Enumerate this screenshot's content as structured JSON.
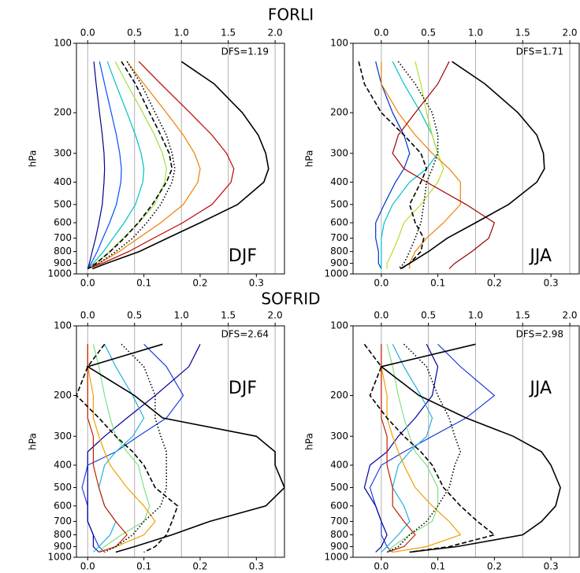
{
  "panel_titles": [
    "FORLI",
    "SOFRID"
  ],
  "chart_data": [
    {
      "type": "line",
      "ylabel": "hPa",
      "season": "DJF",
      "season_position": "lower",
      "annotation": "DFS=1.19",
      "ylim": [
        1000,
        100
      ],
      "log_y": true,
      "yticks": [
        100,
        200,
        300,
        400,
        500,
        600,
        700,
        800,
        900,
        1000
      ],
      "xlim": [
        -0.02,
        0.35
      ],
      "xticks": [
        {
          "value": 0,
          "label": "0.0"
        },
        0.1,
        0.2,
        0.3
      ],
      "x2lim": [
        -0.12,
        2.1
      ],
      "x2ticks": [
        {
          "value": 0,
          "label": "0.0"
        },
        0.5,
        {
          "value": 1,
          "label": "1.0"
        },
        1.5,
        {
          "value": 2,
          "label": "2.0"
        }
      ],
      "grid": true,
      "levels": [
        120,
        150,
        200,
        250,
        300,
        350,
        400,
        500,
        600,
        700,
        800,
        900,
        950
      ],
      "series": [
        {
          "color": "#00008b",
          "style": "solid",
          "values": [
            0.011,
            0.015,
            0.021,
            0.026,
            0.029,
            0.03,
            0.029,
            0.026,
            0.02,
            0.014,
            0.008,
            0.003,
            0
          ]
        },
        {
          "color": "#0050ff",
          "style": "solid",
          "values": [
            0.021,
            0.03,
            0.042,
            0.051,
            0.057,
            0.06,
            0.059,
            0.051,
            0.039,
            0.027,
            0.017,
            0.006,
            0
          ]
        },
        {
          "color": "#00c0c0",
          "style": "solid",
          "values": [
            0.035,
            0.05,
            0.07,
            0.085,
            0.095,
            0.1,
            0.098,
            0.085,
            0.065,
            0.045,
            0.028,
            0.01,
            0
          ]
        },
        {
          "color": "#a0e040",
          "style": "solid",
          "values": [
            0.049,
            0.07,
            0.098,
            0.119,
            0.133,
            0.14,
            0.137,
            0.119,
            0.091,
            0.063,
            0.039,
            0.014,
            0
          ]
        },
        {
          "color": "#f08000",
          "style": "solid",
          "values": [
            0.07,
            0.1,
            0.14,
            0.17,
            0.19,
            0.2,
            0.196,
            0.17,
            0.13,
            0.09,
            0.056,
            0.02,
            0
          ]
        },
        {
          "color": "#c00000",
          "style": "solid",
          "values": [
            0.091,
            0.13,
            0.182,
            0.221,
            0.247,
            0.26,
            0.255,
            0.221,
            0.169,
            0.117,
            0.073,
            0.026,
            0
          ]
        },
        {
          "color": "#000000",
          "style": "dashed",
          "values": [
            0.06,
            0.085,
            0.11,
            0.13,
            0.145,
            0.15,
            0.14,
            0.115,
            0.09,
            0.065,
            0.04,
            0.015,
            0
          ]
        },
        {
          "color": "#000000",
          "style": "dotted",
          "values": [
            0.07,
            0.095,
            0.12,
            0.14,
            0.15,
            0.155,
            0.15,
            0.13,
            0.105,
            0.08,
            0.05,
            0.02,
            0
          ]
        },
        {
          "color": "#000000",
          "style": "solid",
          "axis": "x2",
          "values": [
            1.0,
            1.35,
            1.65,
            1.82,
            1.9,
            1.93,
            1.88,
            1.6,
            1.2,
            0.85,
            0.55,
            0.2,
            0.05
          ]
        }
      ]
    },
    {
      "type": "line",
      "ylabel": "hPa",
      "season": "JJA",
      "season_position": "lower",
      "annotation": "DFS=1.71",
      "ylim": [
        1000,
        100
      ],
      "log_y": true,
      "yticks": [
        100,
        200,
        300,
        400,
        500,
        600,
        700,
        800,
        900,
        1000
      ],
      "xlim": [
        -0.05,
        0.35
      ],
      "xticks": [
        {
          "value": 0,
          "label": "0.0"
        },
        0.1,
        0.2,
        0.3
      ],
      "x2lim": [
        -0.3,
        2.1
      ],
      "x2ticks": [
        {
          "value": 0,
          "label": "0.0"
        },
        0.5,
        {
          "value": 1,
          "label": "1.0"
        },
        1.5,
        {
          "value": 2,
          "label": "2.0"
        }
      ],
      "grid": true,
      "levels": [
        120,
        150,
        200,
        250,
        300,
        350,
        400,
        500,
        600,
        700,
        800,
        900,
        950
      ],
      "series": [
        {
          "color": "#0030d0",
          "style": "solid",
          "values": [
            -0.01,
            0,
            0.02,
            0.04,
            0.05,
            0.04,
            0.025,
            0.005,
            -0.01,
            -0.01,
            -0.005,
            -0.005,
            0
          ]
        },
        {
          "color": "#00c0d0",
          "style": "solid",
          "values": [
            0.02,
            0.04,
            0.07,
            0.09,
            0.1,
            0.08,
            0.05,
            0.02,
            0.005,
            0,
            0,
            0,
            0
          ]
        },
        {
          "color": "#b0e030",
          "style": "solid",
          "values": [
            0.06,
            0.07,
            0.08,
            0.09,
            0.1,
            0.11,
            0.1,
            0.07,
            0.04,
            0.03,
            0.02,
            0.01,
            0.01
          ]
        },
        {
          "color": "#f08000",
          "style": "solid",
          "values": [
            0.0,
            0.0,
            0.03,
            0.06,
            0.09,
            0.12,
            0.14,
            0.14,
            0.11,
            0.08,
            0.06,
            0.05,
            0.05
          ]
        },
        {
          "color": "#a00000",
          "style": "solid",
          "values": [
            0.12,
            0.1,
            0.06,
            0.03,
            0.02,
            0.04,
            0.08,
            0.15,
            0.2,
            0.19,
            0.16,
            0.13,
            0.12
          ]
        },
        {
          "color": "#000000",
          "style": "dashed",
          "values": [
            -0.04,
            -0.03,
            0.0,
            0.04,
            0.07,
            0.08,
            0.07,
            0.05,
            0.06,
            0.075,
            0.07,
            0.05,
            0.035
          ]
        },
        {
          "color": "#000000",
          "style": "dotted",
          "values": [
            0.03,
            0.06,
            0.09,
            0.1,
            0.1,
            0.09,
            0.08,
            0.075,
            0.07,
            0.06,
            0.05,
            0.04,
            0.03
          ]
        },
        {
          "color": "#000000",
          "style": "solid",
          "axis": "x2",
          "values": [
            0.75,
            1.1,
            1.45,
            1.65,
            1.72,
            1.73,
            1.65,
            1.35,
            1.0,
            0.7,
            0.5,
            0.3,
            0.2
          ]
        }
      ]
    },
    {
      "type": "line",
      "ylabel": "hPa",
      "season": "DJF",
      "season_position": "upper",
      "annotation": "DFS=2.64",
      "ylim": [
        1000,
        100
      ],
      "log_y": true,
      "yticks": [
        100,
        200,
        300,
        400,
        500,
        600,
        700,
        800,
        900,
        1000
      ],
      "xlim": [
        -0.02,
        0.35
      ],
      "xticks": [
        {
          "value": 0,
          "label": "0.0"
        },
        0.1,
        0.2,
        0.3
      ],
      "x2lim": [
        -0.12,
        2.1
      ],
      "x2ticks": [
        {
          "value": 0,
          "label": "0.0"
        },
        0.5,
        {
          "value": 1,
          "label": "1.0"
        },
        1.5,
        {
          "value": 2,
          "label": "2.0"
        }
      ],
      "grid": true,
      "levels": [
        120,
        150,
        200,
        250,
        300,
        350,
        400,
        500,
        600,
        700,
        800,
        900,
        950
      ],
      "series": [
        {
          "color": "#2040e0",
          "style": "solid",
          "values": [
            0.1,
            0.14,
            0.17,
            0.14,
            0.09,
            0.05,
            0.0,
            -0.01,
            0.0,
            0.0,
            0.01,
            0.02,
            0.03
          ]
        },
        {
          "color": "#0000a0",
          "style": "solid",
          "values": [
            0.2,
            0.18,
            0.12,
            0.07,
            0.03,
            0.0,
            0.0,
            0.0,
            0.0,
            0.0,
            0.01,
            0.01,
            0.02
          ]
        },
        {
          "color": "#20b0e0",
          "style": "solid",
          "values": [
            0.03,
            0.05,
            0.08,
            0.1,
            0.08,
            0.05,
            0.03,
            0.02,
            0.03,
            0.05,
            0.04,
            0.02,
            0.01
          ]
        },
        {
          "color": "#80e080",
          "style": "solid",
          "values": [
            0.01,
            0.02,
            0.03,
            0.04,
            0.05,
            0.07,
            0.09,
            0.1,
            0.11,
            0.1,
            0.06,
            0.03,
            0.02
          ]
        },
        {
          "color": "#f0a000",
          "style": "solid",
          "values": [
            0,
            0,
            0.01,
            0.01,
            0.02,
            0.03,
            0.04,
            0.07,
            0.1,
            0.12,
            0.1,
            0.05,
            0.02
          ]
        },
        {
          "color": "#c02000",
          "style": "solid",
          "values": [
            0,
            0,
            0,
            0,
            0.01,
            0.01,
            0.01,
            0.02,
            0.03,
            0.05,
            0.07,
            0.05,
            0.02
          ]
        },
        {
          "color": "#000000",
          "style": "dashed",
          "values": [
            0.03,
            0.0,
            -0.02,
            0.02,
            0.05,
            0.08,
            0.1,
            0.12,
            0.16,
            0.15,
            0.14,
            0.12,
            0.1
          ]
        },
        {
          "color": "#000000",
          "style": "dotted",
          "values": [
            0.06,
            0.1,
            0.12,
            0.12,
            0.13,
            0.14,
            0.14,
            0.14,
            0.13,
            0.1,
            0.08,
            0.05,
            0.03
          ]
        },
        {
          "color": "#000000",
          "style": "solid",
          "axis": "x2",
          "values": [
            0.8,
            0.0,
            0.5,
            0.8,
            1.8,
            2.0,
            2.0,
            2.1,
            1.9,
            1.3,
            0.9,
            0.5,
            0.3
          ]
        }
      ]
    },
    {
      "type": "line",
      "ylabel": "hPa",
      "season": "JJA",
      "season_position": "upper",
      "annotation": "DFS=2.98",
      "ylim": [
        1000,
        100
      ],
      "log_y": true,
      "yticks": [
        100,
        200,
        300,
        400,
        500,
        600,
        700,
        800,
        900,
        1000
      ],
      "xlim": [
        -0.05,
        0.35
      ],
      "xticks": [
        {
          "value": 0,
          "label": "0.0"
        },
        0.1,
        0.2,
        0.3
      ],
      "x2lim": [
        -0.3,
        2.1
      ],
      "x2ticks": [
        {
          "value": 0,
          "label": "0.0"
        },
        0.5,
        {
          "value": 1,
          "label": "1.0"
        },
        1.5,
        {
          "value": 2,
          "label": "2.0"
        }
      ],
      "grid": true,
      "levels": [
        120,
        150,
        200,
        250,
        300,
        350,
        400,
        500,
        600,
        700,
        800,
        900,
        950
      ],
      "series": [
        {
          "color": "#2040e0",
          "style": "solid",
          "values": [
            0.1,
            0.14,
            0.2,
            0.15,
            0.09,
            0.04,
            0.0,
            -0.02,
            -0.01,
            0.0,
            0.0,
            0.01,
            0.02
          ]
        },
        {
          "color": "#0000a0",
          "style": "solid",
          "values": [
            0.08,
            0.1,
            0.09,
            0.06,
            0.03,
            0.01,
            -0.02,
            -0.03,
            -0.01,
            0.0,
            0.01,
            0.0,
            -0.01
          ]
        },
        {
          "color": "#20b0e0",
          "style": "solid",
          "values": [
            0.02,
            0.04,
            0.07,
            0.09,
            0.08,
            0.05,
            0.03,
            0.02,
            0.04,
            0.05,
            0.03,
            0.01,
            0.0
          ]
        },
        {
          "color": "#80e080",
          "style": "solid",
          "values": [
            0.01,
            0.02,
            0.03,
            0.04,
            0.05,
            0.06,
            0.08,
            0.1,
            0.1,
            0.09,
            0.05,
            0.02,
            0.01
          ]
        },
        {
          "color": "#f0a000",
          "style": "solid",
          "values": [
            0,
            0,
            0.01,
            0.01,
            0.02,
            0.03,
            0.04,
            0.06,
            0.09,
            0.12,
            0.14,
            0.08,
            0.02
          ]
        },
        {
          "color": "#c02000",
          "style": "solid",
          "values": [
            0,
            0,
            0,
            0,
            0.01,
            0.01,
            0.01,
            0.02,
            0.02,
            0.04,
            0.06,
            0.04,
            0.01
          ]
        },
        {
          "color": "#000000",
          "style": "dashed",
          "values": [
            -0.03,
            0.0,
            -0.02,
            0.01,
            0.04,
            0.07,
            0.09,
            0.11,
            0.14,
            0.17,
            0.2,
            0.12,
            0.05
          ]
        },
        {
          "color": "#000000",
          "style": "dotted",
          "values": [
            0.04,
            0.08,
            0.1,
            0.12,
            0.13,
            0.14,
            0.13,
            0.12,
            0.1,
            0.08,
            0.05,
            0.03,
            0.01
          ]
        },
        {
          "color": "#000000",
          "style": "solid",
          "axis": "x2",
          "values": [
            1.0,
            0.0,
            0.4,
            0.9,
            1.4,
            1.7,
            1.8,
            1.9,
            1.85,
            1.7,
            1.5,
            0.8,
            0.3
          ]
        }
      ]
    }
  ]
}
